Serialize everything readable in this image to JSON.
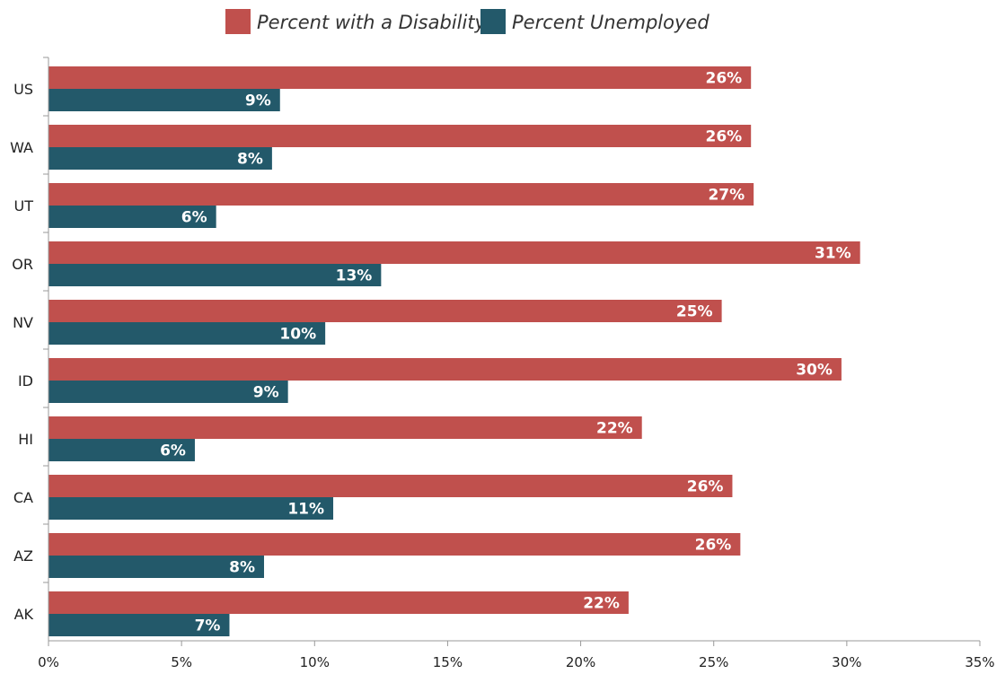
{
  "chart_data": {
    "type": "bar",
    "orientation": "horizontal",
    "categories": [
      "US",
      "WA",
      "UT",
      "OR",
      "NV",
      "ID",
      "HI",
      "CA",
      "AZ",
      "AK"
    ],
    "series": [
      {
        "name": "Percent with a Disability",
        "color": "#C0504D",
        "values": [
          26.4,
          26.4,
          26.5,
          30.5,
          25.3,
          29.8,
          22.3,
          25.7,
          26.0,
          21.8
        ],
        "labels": [
          "26%",
          "26%",
          "27%",
          "31%",
          "25%",
          "30%",
          "22%",
          "26%",
          "26%",
          "22%"
        ]
      },
      {
        "name": "Percent Unemployed",
        "color": "#23596A",
        "values": [
          8.7,
          8.4,
          6.3,
          12.5,
          10.4,
          9.0,
          5.5,
          10.7,
          8.1,
          6.8
        ],
        "labels": [
          "9%",
          "8%",
          "6%",
          "13%",
          "10%",
          "9%",
          "6%",
          "11%",
          "8%",
          "7%"
        ]
      }
    ],
    "xlim": [
      0,
      35
    ],
    "xticks": [
      0,
      5,
      10,
      15,
      20,
      25,
      30,
      35
    ],
    "xtick_labels": [
      "0%",
      "5%",
      "10%",
      "15%",
      "20%",
      "25%",
      "30%",
      "35%"
    ],
    "title": "",
    "xlabel": "",
    "ylabel": "",
    "grid": false,
    "legend": "top-center"
  }
}
